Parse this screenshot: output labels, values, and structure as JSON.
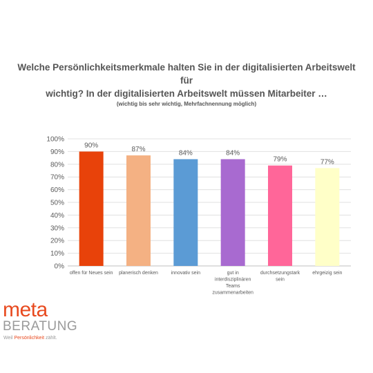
{
  "chart_data": {
    "type": "bar",
    "title_lines": [
      "Welche Persönlichkeitsmerkmale halten Sie in der digitalisierten Arbeitswelt für",
      "wichtig? In der digitalisierten Arbeitswelt müssen Mitarbeiter …"
    ],
    "subtitle": "(wichtig bis sehr wichtig, Mehrfachnennung möglich)",
    "categories": [
      [
        "offen für Neues sein"
      ],
      [
        "planerisch denken"
      ],
      [
        "innovativ sein"
      ],
      [
        "gut in",
        "interdisziplinären",
        "Teams",
        "zusammenarbeiten"
      ],
      [
        "durchsetzungstark",
        "sein"
      ],
      [
        "ehrgeizig sein"
      ]
    ],
    "values": [
      90,
      87,
      84,
      84,
      79,
      77
    ],
    "data_labels": [
      "90%",
      "87%",
      "84%",
      "84%",
      "79%",
      "77%"
    ],
    "colors": [
      "#e8420a",
      "#f4b183",
      "#5b9bd5",
      "#a86ad0",
      "#ff6699",
      "#ffffc8"
    ],
    "y_ticks": [
      "0%",
      "10%",
      "20%",
      "30%",
      "40%",
      "50%",
      "60%",
      "70%",
      "80%",
      "90%",
      "100%"
    ],
    "ylim": [
      0,
      100
    ],
    "grid": true,
    "legend": "none"
  },
  "logo": {
    "meta": "meta",
    "beratung": "BERATUNG",
    "tagline_prefix": "Weil ",
    "tagline_accent": "Persönlichkeit",
    "tagline_suffix": " zählt."
  }
}
